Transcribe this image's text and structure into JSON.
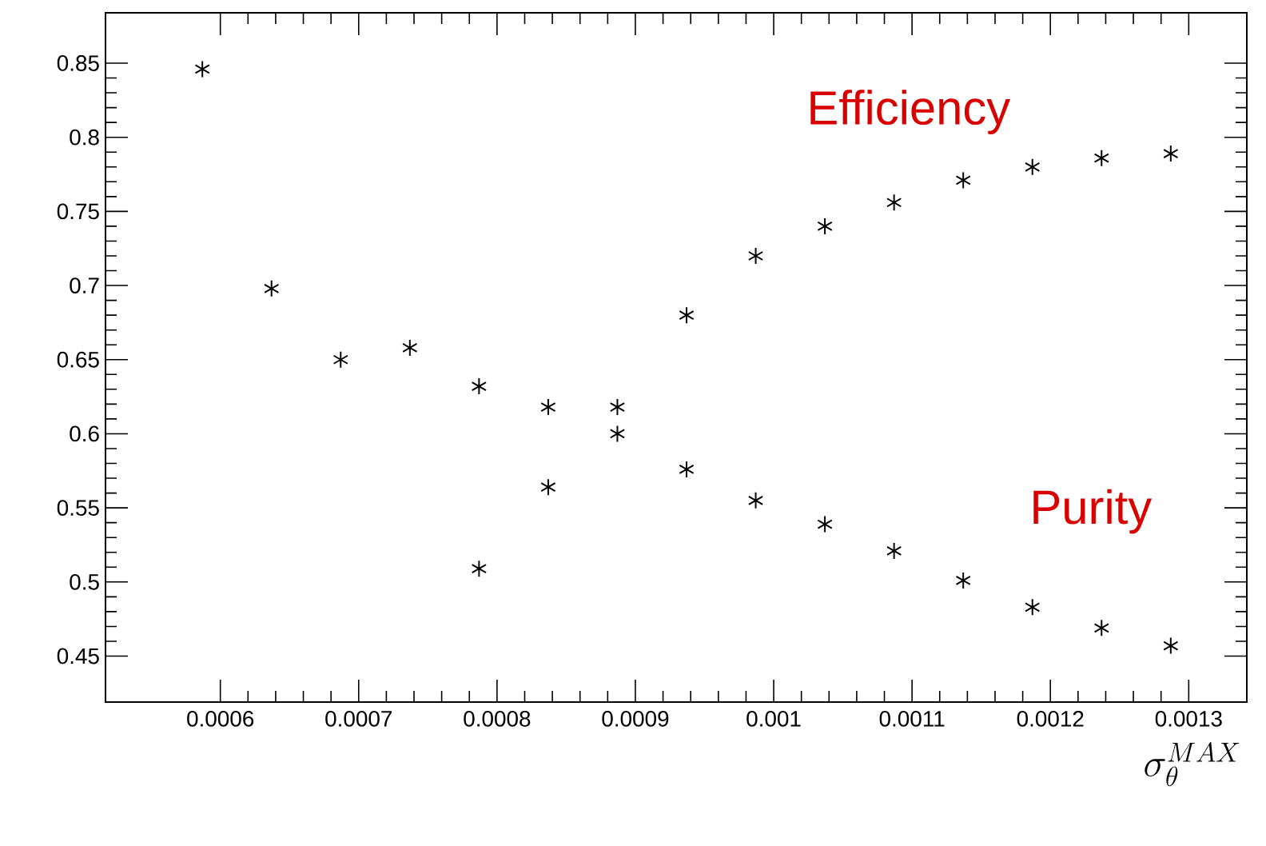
{
  "chart_data": {
    "type": "scatter",
    "xlabel": "\\sigma_{\\theta}^{MAX}",
    "x": [
      0.000587,
      0.000637,
      0.000687,
      0.000737,
      0.000787,
      0.000837,
      0.000887,
      0.000937,
      0.000987,
      0.001037,
      0.001087,
      0.001137,
      0.001187,
      0.001237,
      0.001287
    ],
    "series": [
      {
        "name": "Efficiency",
        "color": "#000000",
        "values": [
          null,
          null,
          null,
          null,
          0.509,
          0.564,
          0.618,
          0.68,
          0.72,
          0.74,
          0.756,
          0.771,
          0.78,
          0.786,
          0.789
        ]
      },
      {
        "name": "Purity",
        "color": "#000000",
        "values": [
          0.846,
          0.698,
          0.65,
          0.658,
          0.632,
          0.618,
          0.6,
          0.576,
          0.555,
          0.539,
          0.521,
          0.501,
          0.483,
          0.469,
          0.457
        ]
      }
    ],
    "marker": "cross",
    "grid": false,
    "legend": "right",
    "xlim": [
      0.000517,
      0.001342
    ],
    "ylim": [
      0.419,
      0.884
    ],
    "xticks": [
      0.0006,
      0.0007,
      0.0008,
      0.0009,
      0.001,
      0.0011,
      0.0012,
      0.0013
    ],
    "yticks": [
      0.45,
      0.5,
      0.55,
      0.6,
      0.65,
      0.7,
      0.75,
      0.8,
      0.85
    ]
  }
}
